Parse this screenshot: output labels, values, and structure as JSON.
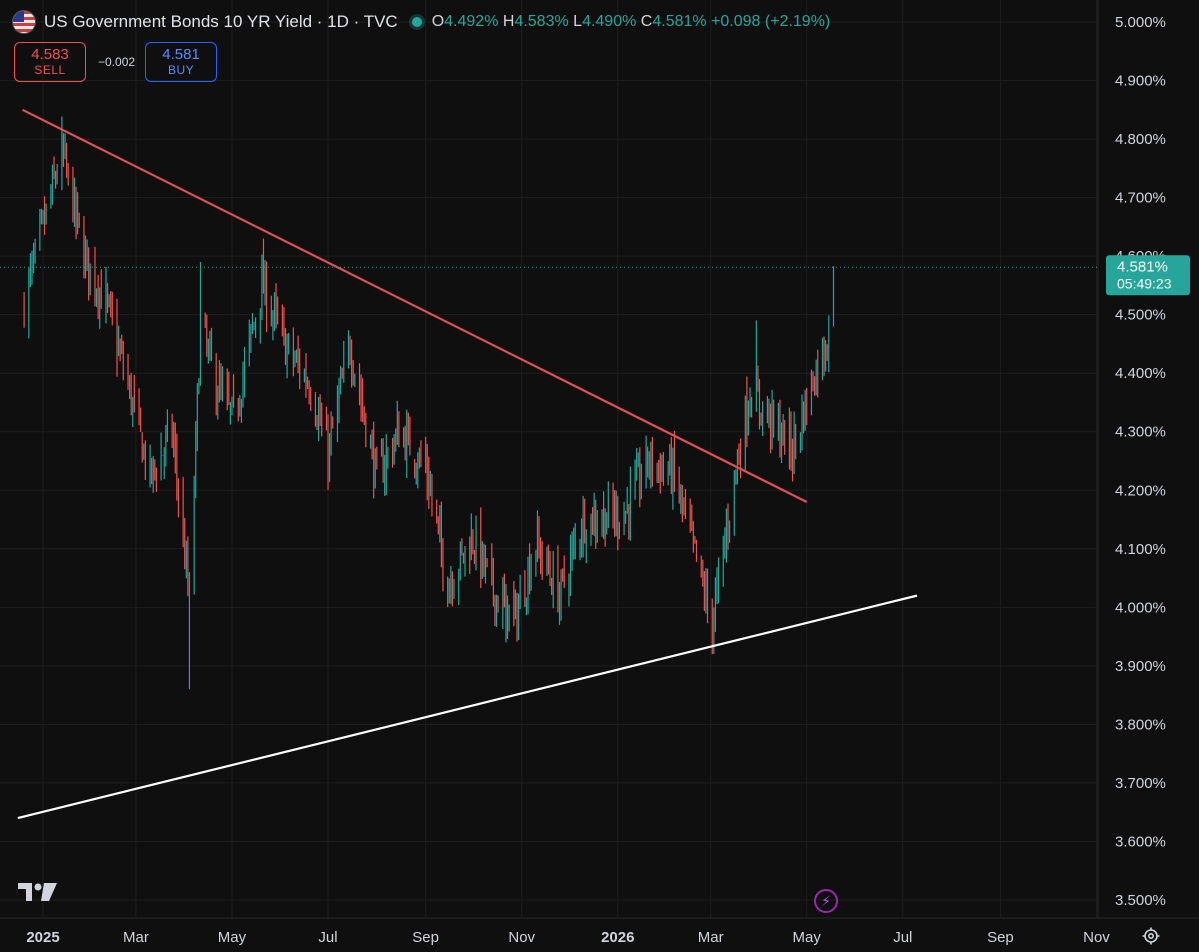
{
  "header": {
    "title": "US Government Bonds 10 YR Yield · 1D · TVC",
    "ohlc": [
      {
        "key": "O",
        "value": "4.492%"
      },
      {
        "key": "H",
        "value": "4.583%"
      },
      {
        "key": "L",
        "value": "4.490%"
      },
      {
        "key": "C",
        "value": "4.581%"
      }
    ],
    "change": "+0.098 (+2.19%)"
  },
  "trade": {
    "sell_price": "4.583",
    "sell_label": "SELL",
    "spread": "−0.002",
    "buy_price": "4.581",
    "buy_label": "BUY"
  },
  "price_tag": {
    "value": "4.581%",
    "countdown": "05:49:23"
  },
  "colors": {
    "background": "#0f0f0f",
    "up": "#26a69a",
    "down": "#ef5350",
    "resistance_line": "#e05252",
    "support_line": "#ffffff",
    "grid": "#1e1e1e"
  },
  "icons": {
    "symbol": "us-flag-icon",
    "logo": "tradingview-logo",
    "bolt": "lightning-icon",
    "settings": "gear-icon"
  },
  "chart_data": {
    "type": "candlestick",
    "title": "US Government Bonds 10 YR Yield · 1D · TVC",
    "ylim": [
      3.48,
      5.02
    ],
    "y_ticks": [
      "5.000%",
      "4.900%",
      "4.800%",
      "4.700%",
      "4.600%",
      "4.500%",
      "4.400%",
      "4.300%",
      "4.200%",
      "4.100%",
      "4.000%",
      "3.900%",
      "3.800%",
      "3.700%",
      "3.600%",
      "3.500%"
    ],
    "y_tick_values": [
      5.0,
      4.9,
      4.8,
      4.7,
      4.6,
      4.5,
      4.4,
      4.3,
      4.2,
      4.1,
      4.0,
      3.9,
      3.8,
      3.7,
      3.6,
      3.5
    ],
    "x_ticks": [
      {
        "label": "2025",
        "date": "2025-01-01",
        "bold": true
      },
      {
        "label": "Mar",
        "date": "2025-03-01"
      },
      {
        "label": "May",
        "date": "2025-05-01"
      },
      {
        "label": "Jul",
        "date": "2025-07-01"
      },
      {
        "label": "Sep",
        "date": "2025-09-01"
      },
      {
        "label": "Nov",
        "date": "2025-11-01"
      },
      {
        "label": "2026",
        "date": "2026-01-01",
        "bold": true
      },
      {
        "label": "Mar",
        "date": "2026-03-01"
      },
      {
        "label": "May",
        "date": "2026-05-01"
      },
      {
        "label": "Jul",
        "date": "2026-07-01"
      },
      {
        "label": "Sep",
        "date": "2026-09-01"
      },
      {
        "label": "Nov",
        "date": "2026-11-01"
      }
    ],
    "grid": true,
    "last_price": 4.581,
    "trend_lines": [
      {
        "name": "resistance",
        "points": [
          [
            "2024-12-19",
            4.85
          ],
          [
            "2026-05-01",
            4.18
          ]
        ]
      },
      {
        "name": "support",
        "points": [
          [
            "2024-12-16",
            3.64
          ],
          [
            "2026-07-10",
            4.02
          ]
        ]
      }
    ],
    "close_path": [
      [
        "2024-12-20",
        4.52
      ],
      [
        "2025-01-13",
        4.78
      ],
      [
        "2025-01-27",
        4.6
      ],
      [
        "2025-02-10",
        4.52
      ],
      [
        "2025-02-24",
        4.38
      ],
      [
        "2025-03-10",
        4.22
      ],
      [
        "2025-03-24",
        4.3
      ],
      [
        "2025-04-04",
        4.01
      ],
      [
        "2025-04-11",
        4.48
      ],
      [
        "2025-04-21",
        4.38
      ],
      [
        "2025-05-02",
        4.32
      ],
      [
        "2025-05-20",
        4.55
      ],
      [
        "2025-06-05",
        4.44
      ],
      [
        "2025-06-20",
        4.38
      ],
      [
        "2025-07-01",
        4.26
      ],
      [
        "2025-07-15",
        4.45
      ],
      [
        "2025-08-01",
        4.22
      ],
      [
        "2025-08-15",
        4.3
      ],
      [
        "2025-09-01",
        4.24
      ],
      [
        "2025-09-15",
        4.04
      ],
      [
        "2025-10-01",
        4.12
      ],
      [
        "2025-10-15",
        4.02
      ],
      [
        "2025-10-28",
        3.98
      ],
      [
        "2025-11-10",
        4.11
      ],
      [
        "2025-11-25",
        4.02
      ],
      [
        "2025-12-10",
        4.15
      ],
      [
        "2026-01-05",
        4.16
      ],
      [
        "2026-01-20",
        4.25
      ],
      [
        "2026-02-05",
        4.23
      ],
      [
        "2026-02-18",
        4.1
      ],
      [
        "2026-03-02",
        3.97
      ],
      [
        "2026-03-16",
        4.22
      ],
      [
        "2026-03-26",
        4.37
      ],
      [
        "2026-04-08",
        4.32
      ],
      [
        "2026-04-22",
        4.27
      ],
      [
        "2026-05-06",
        4.4
      ],
      [
        "2026-05-14",
        4.46
      ],
      [
        "2026-05-18",
        4.581
      ]
    ],
    "wick_extremes": [
      {
        "date": "2025-01-14",
        "high": 4.81
      },
      {
        "date": "2025-04-04",
        "low": 3.86
      },
      {
        "date": "2025-04-11",
        "high": 4.59
      },
      {
        "date": "2025-05-21",
        "high": 4.63
      },
      {
        "date": "2025-10-22",
        "low": 3.94
      },
      {
        "date": "2026-03-02",
        "low": 3.92
      },
      {
        "date": "2026-03-30",
        "high": 4.49
      },
      {
        "date": "2026-05-18",
        "high": 4.583
      }
    ]
  }
}
